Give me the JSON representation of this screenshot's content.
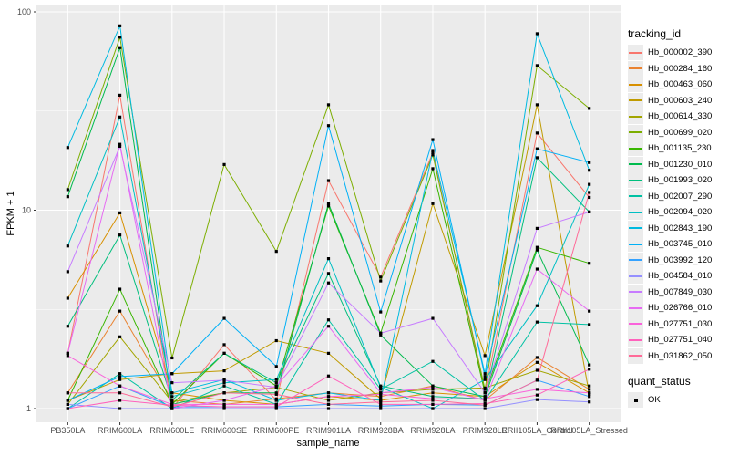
{
  "figure": {
    "background": "#FFFFFF",
    "panel_background": "#EBEBEB",
    "grid_major_color": "#FFFFFF",
    "grid_minor_color": "#FFFFFF",
    "tick_color": "#333333",
    "axis_text_color": "#4D4D4D",
    "point_color": "#000000",
    "legend_key_background": "#ECECEC"
  },
  "chart_data": {
    "type": "line",
    "title": "",
    "xlabel": "sample_name",
    "ylabel": "FPKM + 1",
    "yscale": "log10",
    "ylim": [
      1,
      100
    ],
    "y_ticks": [
      1,
      10,
      100
    ],
    "y_minor_ticks": [
      3.1623,
      31.623
    ],
    "grid": true,
    "legend_position": "right",
    "point_shape": "square",
    "categories": [
      "PB350LA",
      "RRIM600LA",
      "RRIM600LE",
      "RRIM600SE",
      "RRIM600PE",
      "RRIM901LA",
      "RRIM928BA",
      "RRIM928LA",
      "RRIM928LE",
      "RRII105LA_Control",
      "RRII105LA_Stressed"
    ],
    "series": [
      {
        "name": "Hb_000002_390",
        "color": "#F8766D",
        "values": [
          1.9,
          38,
          1.0,
          2.1,
          1.1,
          14.1,
          4.6,
          19.5,
          1.2,
          24.5,
          11.6
        ]
      },
      {
        "name": "Hb_000284_160",
        "color": "#EA8331",
        "values": [
          1.2,
          3.1,
          1.1,
          1.05,
          1.12,
          1.2,
          1.15,
          1.3,
          1.1,
          1.81,
          1.25
        ]
      },
      {
        "name": "Hb_000463_060",
        "color": "#D89000",
        "values": [
          3.6,
          9.7,
          1.2,
          1.1,
          1.05,
          1.15,
          1.1,
          1.2,
          1.15,
          1.71,
          1.2
        ]
      },
      {
        "name": "Hb_000603_240",
        "color": "#C09B00",
        "values": [
          1.1,
          1.4,
          1.5,
          1.55,
          2.2,
          1.9,
          1.12,
          10.8,
          1.85,
          34,
          1.18
        ]
      },
      {
        "name": "Hb_000614_330",
        "color": "#A3A500",
        "values": [
          1.05,
          2.3,
          1.08,
          1.2,
          1.28,
          1.1,
          1.2,
          1.25,
          1.27,
          1.56,
          1.3
        ]
      },
      {
        "name": "Hb_000699_020",
        "color": "#7CAE00",
        "values": [
          12.7,
          74.5,
          1.8,
          17,
          6.2,
          34,
          4.4,
          19,
          1.25,
          53.6,
          32.6
        ]
      },
      {
        "name": "Hb_001135_230",
        "color": "#39B600",
        "values": [
          1.1,
          4.0,
          1.05,
          1.9,
          1.3,
          10.5,
          2.4,
          16.2,
          1.2,
          6.5,
          5.4
        ]
      },
      {
        "name": "Hb_001230_010",
        "color": "#00BB4E",
        "values": [
          11.7,
          66,
          1.05,
          1.2,
          1.2,
          10.8,
          2.35,
          1.3,
          1.15,
          6.3,
          1.66
        ]
      },
      {
        "name": "Hb_001993_020",
        "color": "#00BF7D",
        "values": [
          2.6,
          7.5,
          1.1,
          1.9,
          1.35,
          4.8,
          1.3,
          1.15,
          1.12,
          18.4,
          9.8
        ]
      },
      {
        "name": "Hb_002007_290",
        "color": "#00C1A3",
        "values": [
          1.0,
          1.5,
          1.0,
          1.3,
          1.05,
          2.8,
          1.25,
          1.73,
          1.1,
          2.73,
          2.65
        ]
      },
      {
        "name": "Hb_002094_020",
        "color": "#00BFC4",
        "values": [
          6.6,
          29.5,
          1.15,
          1.35,
          1.4,
          5.7,
          1.28,
          1.0,
          1.4,
          3.3,
          13.5
        ]
      },
      {
        "name": "Hb_002843_190",
        "color": "#00BAE0",
        "values": [
          20.7,
          85,
          1.2,
          1.4,
          1.1,
          1.2,
          1.1,
          20,
          1.5,
          77.6,
          15.9
        ]
      },
      {
        "name": "Hb_003745_010",
        "color": "#00B0F6",
        "values": [
          1.1,
          1.45,
          1.5,
          2.85,
          1.63,
          26.7,
          3.07,
          22.7,
          1.45,
          20.4,
          17.4
        ]
      },
      {
        "name": "Hb_003992_120",
        "color": "#35A2FF",
        "values": [
          1.0,
          1.3,
          1.02,
          1.02,
          1.02,
          1.05,
          1.03,
          1.05,
          1.04,
          1.39,
          1.15
        ]
      },
      {
        "name": "Hb_004584_010",
        "color": "#9590FF",
        "values": [
          1.05,
          1.0,
          1.0,
          1.0,
          1.0,
          1.0,
          1.0,
          1.0,
          1.0,
          1.11,
          1.08
        ]
      },
      {
        "name": "Hb_007849_030",
        "color": "#C77CFF",
        "values": [
          4.9,
          21,
          1.35,
          1.39,
          1.28,
          4.3,
          2.4,
          2.85,
          1.2,
          8.1,
          9.8
        ]
      },
      {
        "name": "Hb_026766_010",
        "color": "#E76BF3",
        "values": [
          1.9,
          21.5,
          1.0,
          1.1,
          1.3,
          2.6,
          1.2,
          1.28,
          1.1,
          5.05,
          3.1
        ]
      },
      {
        "name": "Hb_027751_030",
        "color": "#FA62DB",
        "values": [
          1.85,
          1.3,
          1.05,
          1.05,
          1.05,
          1.15,
          1.18,
          1.12,
          1.12,
          1.25,
          1.2
        ]
      },
      {
        "name": "Hb_027751_040",
        "color": "#FF62BC",
        "values": [
          1.0,
          1.1,
          1.04,
          1.02,
          1.02,
          1.46,
          1.05,
          1.05,
          1.06,
          1.17,
          1.58
        ]
      },
      {
        "name": "Hb_031862_050",
        "color": "#FF6A98",
        "values": [
          1.2,
          1.2,
          1.02,
          1.2,
          1.18,
          1.05,
          1.08,
          1.1,
          1.04,
          1.39,
          12.3
        ]
      }
    ],
    "legend": {
      "tracking_title": "tracking_id",
      "quant_title": "quant_status",
      "quant_value": "OK"
    }
  }
}
